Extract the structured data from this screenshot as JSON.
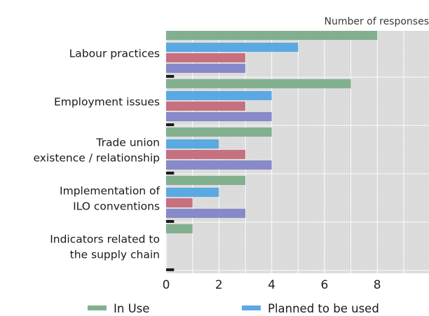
{
  "chart_data": {
    "type": "bar",
    "orientation": "horizontal",
    "xlabel": "Number of responses",
    "categories": [
      [
        "Labour practices"
      ],
      [
        "Employment issues"
      ],
      [
        "Trade union",
        "existence / relationship"
      ],
      [
        "Implementation of",
        "ILO conventions"
      ],
      [
        "Indicators related to",
        "the supply chain"
      ]
    ],
    "series": [
      {
        "name": "In Use",
        "color": "#82b08f",
        "values": [
          8,
          7,
          4,
          3,
          1
        ]
      },
      {
        "name": "Planned to be used",
        "color": "#5aa9e3",
        "values": [
          5,
          4,
          2,
          2,
          0
        ]
      },
      {
        "name": "",
        "color": "#c7707f",
        "values": [
          3,
          3,
          3,
          1,
          0
        ]
      },
      {
        "name": "",
        "color": "#8789c9",
        "values": [
          3,
          4,
          4,
          3,
          0
        ]
      },
      {
        "name": "",
        "color": "#1c1c1c",
        "values": [
          0.3,
          0.3,
          0.3,
          0.3,
          0.3
        ]
      }
    ],
    "xticks": [
      0,
      2,
      4,
      6,
      8
    ],
    "xlim": [
      0,
      9.8
    ],
    "grid": true,
    "legend_position": "bottom"
  }
}
